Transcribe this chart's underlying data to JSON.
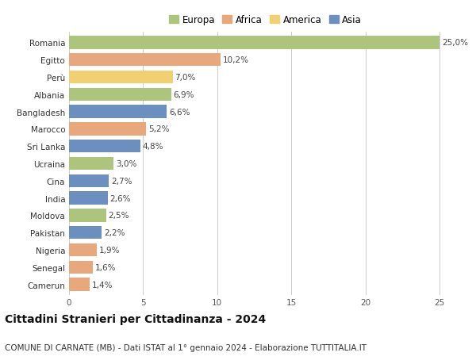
{
  "countries": [
    "Romania",
    "Egitto",
    "Perù",
    "Albania",
    "Bangladesh",
    "Marocco",
    "Sri Lanka",
    "Ucraina",
    "Cina",
    "India",
    "Moldova",
    "Pakistan",
    "Nigeria",
    "Senegal",
    "Camerun"
  ],
  "values": [
    25.0,
    10.2,
    7.0,
    6.9,
    6.6,
    5.2,
    4.8,
    3.0,
    2.7,
    2.6,
    2.5,
    2.2,
    1.9,
    1.6,
    1.4
  ],
  "regions": [
    "Europa",
    "Africa",
    "America",
    "Europa",
    "Asia",
    "Africa",
    "Asia",
    "Europa",
    "Asia",
    "Asia",
    "Europa",
    "Asia",
    "Africa",
    "Africa",
    "Africa"
  ],
  "colors": {
    "Europa": "#adc47d",
    "Africa": "#e8a87c",
    "America": "#f0d070",
    "Asia": "#6b8fbf"
  },
  "legend_order": [
    "Europa",
    "Africa",
    "America",
    "Asia"
  ],
  "title": "Cittadini Stranieri per Cittadinanza - 2024",
  "subtitle": "COMUNE DI CARNATE (MB) - Dati ISTAT al 1° gennaio 2024 - Elaborazione TUTTITALIA.IT",
  "xlim": [
    0,
    26.5
  ],
  "xticks": [
    0,
    5,
    10,
    15,
    20,
    25
  ],
  "background_color": "#ffffff",
  "grid_color": "#cccccc",
  "bar_height": 0.75,
  "label_fontsize": 7.5,
  "tick_fontsize": 7.5,
  "title_fontsize": 10,
  "subtitle_fontsize": 7.5
}
